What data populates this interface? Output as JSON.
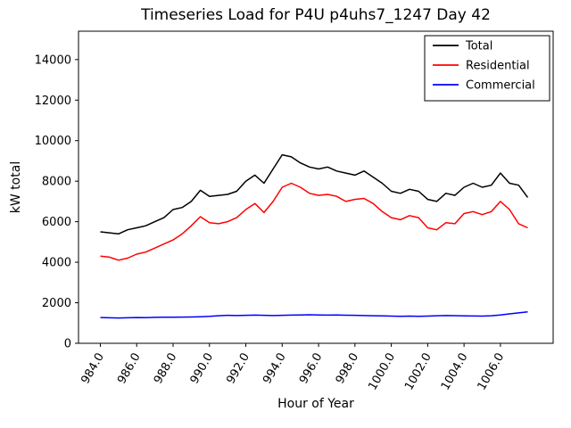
{
  "chart_data": {
    "type": "line",
    "title": "Timeseries Load for P4U p4uhs7_1247  Day 42",
    "xlabel": "Hour of Year",
    "ylabel": "kW total",
    "xlim": [
      982.8,
      1008.9
    ],
    "ylim": [
      0,
      15400
    ],
    "xticks": [
      984,
      986,
      988,
      990,
      992,
      994,
      996,
      998,
      1000,
      1002,
      1004,
      1006
    ],
    "xtick_labels": [
      "984.0",
      "986.0",
      "988.0",
      "990.0",
      "992.0",
      "994.0",
      "996.0",
      "998.0",
      "1000.0",
      "1002.0",
      "1004.0",
      "1006.0"
    ],
    "yticks": [
      0,
      2000,
      4000,
      6000,
      8000,
      10000,
      12000,
      14000
    ],
    "ytick_labels": [
      "0",
      "2000",
      "4000",
      "6000",
      "8000",
      "10000",
      "12000",
      "14000"
    ],
    "legend_position": "upper right",
    "x": [
      984.0,
      984.5,
      985.0,
      985.5,
      986.0,
      986.5,
      987.0,
      987.5,
      988.0,
      988.5,
      989.0,
      989.5,
      990.0,
      990.5,
      991.0,
      991.5,
      992.0,
      992.5,
      993.0,
      993.5,
      994.0,
      994.5,
      995.0,
      995.5,
      996.0,
      996.5,
      997.0,
      997.5,
      998.0,
      998.5,
      999.0,
      999.5,
      1000.0,
      1000.5,
      1001.0,
      1001.5,
      1002.0,
      1002.5,
      1003.0,
      1003.5,
      1004.0,
      1004.5,
      1005.0,
      1005.5,
      1006.0,
      1006.5,
      1007.0,
      1007.5
    ],
    "series": [
      {
        "name": "Total",
        "color": "#000000",
        "values": [
          5500,
          5450,
          5400,
          5600,
          5700,
          5800,
          6000,
          6200,
          6600,
          6700,
          7000,
          7550,
          7250,
          7300,
          7350,
          7500,
          8000,
          8300,
          7900,
          8600,
          9300,
          9200,
          8900,
          8700,
          8600,
          8700,
          8500,
          8400,
          8300,
          8500,
          8200,
          7900,
          7500,
          7400,
          7600,
          7500,
          7100,
          7000,
          7400,
          7300,
          7700,
          7900,
          7700,
          7800,
          8400,
          7900,
          7800,
          7200
        ]
      },
      {
        "name": "Residential",
        "color": "#ff0000",
        "values": [
          4300,
          4250,
          4100,
          4200,
          4400,
          4500,
          4700,
          4900,
          5100,
          5400,
          5800,
          6250,
          5950,
          5900,
          6000,
          6200,
          6600,
          6900,
          6450,
          7000,
          7700,
          7900,
          7700,
          7400,
          7300,
          7350,
          7250,
          7000,
          7100,
          7150,
          6900,
          6500,
          6200,
          6100,
          6300,
          6200,
          5700,
          5600,
          5950,
          5900,
          6400,
          6500,
          6350,
          6500,
          7000,
          6600,
          5900,
          5700
        ]
      },
      {
        "name": "Commercial",
        "color": "#0000ff",
        "values": [
          1270,
          1260,
          1250,
          1260,
          1270,
          1265,
          1280,
          1285,
          1290,
          1295,
          1300,
          1310,
          1330,
          1360,
          1380,
          1370,
          1380,
          1390,
          1380,
          1370,
          1380,
          1390,
          1400,
          1410,
          1400,
          1390,
          1395,
          1385,
          1380,
          1370,
          1360,
          1350,
          1340,
          1330,
          1340,
          1330,
          1340,
          1360,
          1370,
          1365,
          1355,
          1345,
          1340,
          1360,
          1400,
          1450,
          1500,
          1550
        ]
      }
    ]
  }
}
